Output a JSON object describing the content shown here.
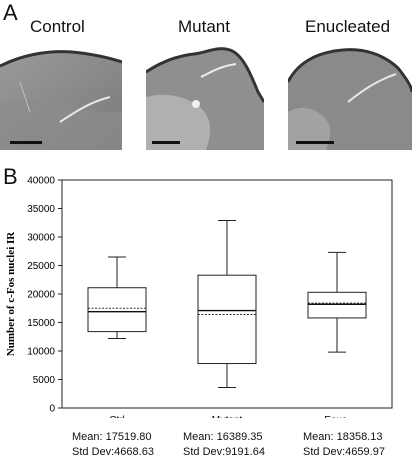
{
  "panel_a": {
    "letter": "A",
    "images": [
      {
        "label": "Control"
      },
      {
        "label": "Mutant"
      },
      {
        "label": "Enucleated"
      }
    ]
  },
  "panel_b": {
    "letter": "B",
    "stats": [
      {
        "mean": "Mean:  17519.80",
        "sd": "Std Dev:4668.63"
      },
      {
        "mean": "Mean:  16389.35",
        "sd": "Std Dev:9191.64"
      },
      {
        "mean": "Mean:  18358.13",
        "sd": "Std Dev:4659.97"
      }
    ]
  },
  "chart_data": {
    "type": "box",
    "ylabel": "Number of c-Fos nuclei IR",
    "ylim": [
      0,
      40000
    ],
    "yticks": [
      0,
      5000,
      10000,
      15000,
      20000,
      25000,
      30000,
      35000,
      40000
    ],
    "categories": [
      "Ctrl",
      "Mutant",
      "Enuc."
    ],
    "boxes": [
      {
        "min": 12200,
        "q1": 13400,
        "median": 16900,
        "mean": 17500,
        "q3": 21100,
        "max": 26500
      },
      {
        "min": 3600,
        "q1": 7800,
        "median": 17100,
        "mean": 16400,
        "q3": 23300,
        "max": 32900
      },
      {
        "min": 9800,
        "q1": 15800,
        "median": 18200,
        "mean": 18400,
        "q3": 20300,
        "max": 27300
      }
    ]
  }
}
